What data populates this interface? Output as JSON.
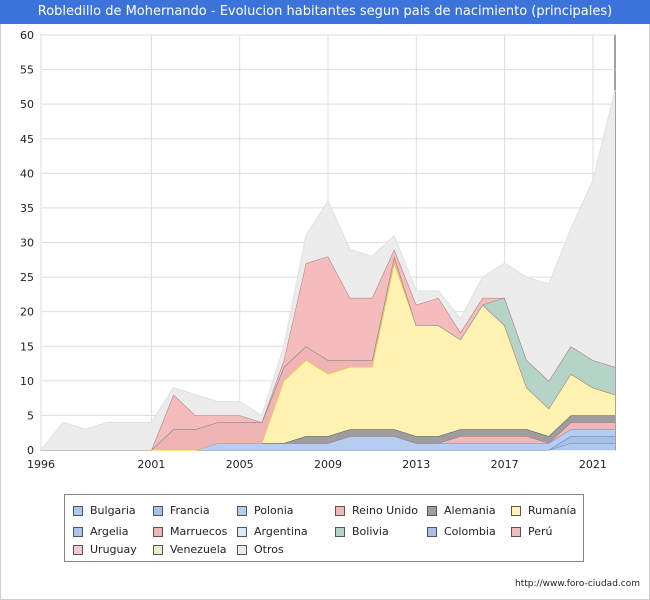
{
  "header": {
    "title": "Robledillo de Mohernando - Evolucion habitantes segun pais de nacimiento (principales)"
  },
  "footer": {
    "source": "http://www.foro-ciudad.com"
  },
  "chart_data": {
    "type": "area",
    "stacked": true,
    "x": [
      1996,
      1997,
      1998,
      1999,
      2000,
      2001,
      2002,
      2003,
      2004,
      2005,
      2006,
      2007,
      2008,
      2009,
      2010,
      2011,
      2012,
      2013,
      2014,
      2015,
      2016,
      2017,
      2018,
      2019,
      2020,
      2021,
      2022
    ],
    "xticks": [
      1996,
      2001,
      2005,
      2009,
      2013,
      2017,
      2021
    ],
    "ylim": [
      0,
      60
    ],
    "yticks": [
      0,
      5,
      10,
      15,
      20,
      25,
      30,
      35,
      40,
      45,
      50,
      55,
      60
    ],
    "grid": true,
    "legend_position": "bottom",
    "series": [
      {
        "name": "Bulgaria",
        "color": "#aec8f0",
        "values": [
          0,
          0,
          0,
          0,
          0,
          0,
          0,
          0,
          0,
          0,
          0,
          0,
          0,
          0,
          0,
          0,
          0,
          0,
          0,
          0,
          0,
          0,
          0,
          0,
          1,
          1,
          1
        ]
      },
      {
        "name": "Francia",
        "color": "#a8c0e6",
        "values": [
          0,
          0,
          0,
          0,
          0,
          0,
          0,
          0,
          0,
          0,
          0,
          0,
          0,
          0,
          0,
          0,
          0,
          0,
          0,
          0,
          0,
          0,
          0,
          0,
          1,
          1,
          1
        ]
      },
      {
        "name": "Polonia",
        "color": "#b6cdf2",
        "values": [
          0,
          0,
          0,
          0,
          0,
          0,
          0,
          0,
          1,
          1,
          1,
          1,
          1,
          1,
          2,
          2,
          2,
          1,
          1,
          1,
          1,
          1,
          1,
          1,
          1,
          1,
          1
        ]
      },
      {
        "name": "Reino Unido",
        "color": "#f2b8b8",
        "values": [
          0,
          0,
          0,
          0,
          0,
          0,
          0,
          0,
          0,
          0,
          0,
          0,
          0,
          0,
          0,
          0,
          0,
          0,
          0,
          1,
          1,
          1,
          1,
          0,
          1,
          1,
          1
        ]
      },
      {
        "name": "Alemania",
        "color": "#9e9e9e",
        "values": [
          0,
          0,
          0,
          0,
          0,
          0,
          0,
          0,
          0,
          0,
          0,
          0,
          1,
          1,
          1,
          1,
          1,
          1,
          1,
          1,
          1,
          1,
          1,
          1,
          1,
          1,
          1
        ]
      },
      {
        "name": "Rumanía",
        "color": "#fff2b3",
        "values": [
          0,
          0,
          0,
          0,
          0,
          0,
          0,
          0,
          0,
          0,
          0,
          9,
          11,
          9,
          9,
          9,
          24,
          16,
          16,
          13,
          18,
          15,
          6,
          4,
          6,
          4,
          3
        ]
      },
      {
        "name": "Argelia",
        "color": "#aac4ec",
        "values": [
          0,
          0,
          0,
          0,
          0,
          0,
          0,
          0,
          0,
          0,
          0,
          0,
          0,
          0,
          0,
          0,
          0,
          0,
          0,
          0,
          0,
          0,
          0,
          0,
          0,
          0,
          0
        ]
      },
      {
        "name": "Marruecos",
        "color": "#f0b4b4",
        "values": [
          0,
          0,
          0,
          0,
          0,
          0,
          3,
          3,
          3,
          3,
          3,
          2,
          2,
          2,
          1,
          1,
          1,
          0,
          0,
          0,
          0,
          0,
          0,
          0,
          0,
          0,
          0
        ]
      },
      {
        "name": "Argentina",
        "color": "#dde9fb",
        "values": [
          0,
          0,
          0,
          0,
          0,
          0,
          0,
          0,
          0,
          0,
          0,
          0,
          0,
          0,
          0,
          0,
          0,
          0,
          0,
          0,
          0,
          0,
          0,
          0,
          0,
          0,
          0
        ]
      },
      {
        "name": "Bolivia",
        "color": "#b3d4c6",
        "values": [
          0,
          0,
          0,
          0,
          0,
          0,
          0,
          0,
          0,
          0,
          0,
          0,
          0,
          0,
          0,
          0,
          0,
          0,
          0,
          0,
          0,
          4,
          4,
          4,
          4,
          4,
          4
        ]
      },
      {
        "name": "Colombia",
        "color": "#aebfe6",
        "values": [
          0,
          0,
          0,
          0,
          0,
          0,
          0,
          0,
          0,
          0,
          0,
          0,
          0,
          0,
          0,
          0,
          0,
          0,
          0,
          0,
          0,
          0,
          0,
          0,
          0,
          0,
          0
        ]
      },
      {
        "name": "Perú",
        "color": "#f4bcbc",
        "values": [
          0,
          0,
          0,
          0,
          0,
          0,
          5,
          2,
          1,
          1,
          0,
          1,
          12,
          15,
          9,
          9,
          1,
          3,
          4,
          1,
          1,
          0,
          0,
          0,
          0,
          0,
          0
        ]
      },
      {
        "name": "Uruguay",
        "color": "#f0c8d2",
        "values": [
          0,
          0,
          0,
          0,
          0,
          0,
          0,
          0,
          0,
          0,
          0,
          0,
          0,
          0,
          0,
          0,
          0,
          0,
          0,
          0,
          0,
          0,
          0,
          0,
          0,
          0,
          0
        ]
      },
      {
        "name": "Venezuela",
        "color": "#e6f0c8",
        "values": [
          0,
          0,
          0,
          0,
          0,
          0,
          0,
          0,
          0,
          0,
          0,
          0,
          0,
          0,
          0,
          0,
          0,
          0,
          0,
          0,
          0,
          0,
          0,
          0,
          0,
          0,
          0
        ]
      },
      {
        "name": "Otros",
        "color": "#ececec",
        "values": [
          0,
          4,
          3,
          4,
          4,
          4,
          1,
          3,
          2,
          2,
          1,
          2,
          4,
          8,
          7,
          6,
          2,
          2,
          1,
          2,
          3,
          5,
          12,
          14,
          17,
          26,
          40
        ]
      }
    ]
  }
}
